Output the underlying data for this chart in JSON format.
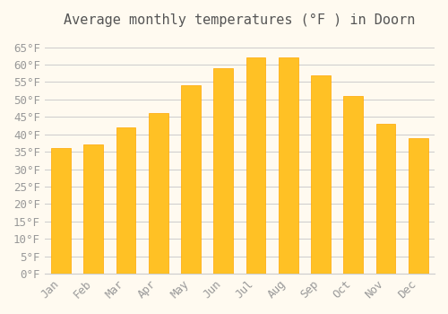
{
  "title": "Average monthly temperatures (°F ) in Doorn",
  "months": [
    "Jan",
    "Feb",
    "Mar",
    "Apr",
    "May",
    "Jun",
    "Jul",
    "Aug",
    "Sep",
    "Oct",
    "Nov",
    "Dec"
  ],
  "values": [
    36,
    37,
    42,
    46,
    54,
    59,
    62,
    62,
    57,
    51,
    43,
    39
  ],
  "bar_color_main": "#FFC125",
  "bar_color_edge": "#FFA500",
  "background_color": "#FFFAF0",
  "grid_color": "#CCCCCC",
  "ylim": [
    0,
    68
  ],
  "ytick_step": 5,
  "title_fontsize": 11,
  "tick_fontsize": 9,
  "font_family": "monospace"
}
